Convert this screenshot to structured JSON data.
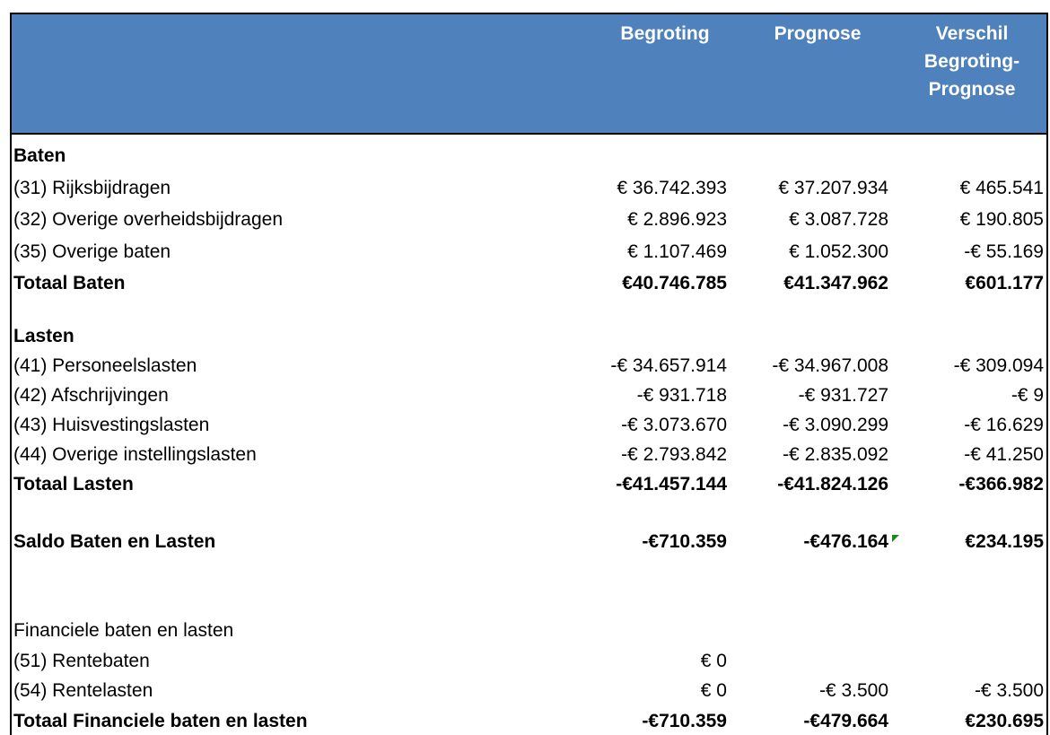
{
  "header": {
    "columns": [
      "Begroting",
      "Prognose",
      "Verschil Begroting-Prognose"
    ]
  },
  "sections": [
    {
      "rows": [
        {
          "label": "Baten",
          "bold": true,
          "values": [
            null,
            null,
            null
          ]
        },
        {
          "label": "(31) Rijksbijdragen",
          "bold": false,
          "values": [
            "€ 36.742.393",
            "€ 37.207.934",
            "€ 465.541"
          ]
        },
        {
          "label": "(32) Overige overheidsbijdragen",
          "bold": false,
          "values": [
            "€ 2.896.923",
            "€ 3.087.728",
            "€ 190.805"
          ]
        },
        {
          "label": "(35) Overige baten",
          "bold": false,
          "values": [
            "€ 1.107.469",
            "€ 1.052.300",
            "-€ 55.169"
          ]
        },
        {
          "label": "Totaal Baten",
          "bold": true,
          "values": [
            "€40.746.785",
            "€41.347.962",
            "€601.177"
          ]
        }
      ]
    },
    {
      "rows": [
        {
          "label": "Lasten",
          "bold": true,
          "values": [
            null,
            null,
            null
          ]
        },
        {
          "label": "(41) Personeelslasten",
          "bold": false,
          "values": [
            "-€ 34.657.914",
            "-€ 34.967.008",
            "-€ 309.094"
          ]
        },
        {
          "label": "(42) Afschrijvingen",
          "bold": false,
          "values": [
            "-€ 931.718",
            "-€ 931.727",
            "-€ 9"
          ]
        },
        {
          "label": "(43) Huisvestingslasten",
          "bold": false,
          "values": [
            "-€ 3.073.670",
            "-€ 3.090.299",
            "-€ 16.629"
          ]
        },
        {
          "label": "(44) Overige instellingslasten",
          "bold": false,
          "values": [
            "-€ 2.793.842",
            "-€ 2.835.092",
            "-€ 41.250"
          ]
        },
        {
          "label": "Totaal Lasten",
          "bold": true,
          "values": [
            "-€41.457.144",
            "-€41.824.126",
            "-€366.982"
          ]
        }
      ]
    },
    {
      "rows": [
        {
          "label": "Saldo Baten en Lasten",
          "bold": true,
          "values": [
            "-€710.359",
            "-€476.164",
            "€234.195"
          ]
        }
      ]
    },
    {
      "rows": [
        {
          "label": "Financiele baten en lasten",
          "bold": false,
          "values": [
            null,
            null,
            null
          ]
        },
        {
          "label": "(51) Rentebaten",
          "bold": false,
          "values": [
            "€ 0",
            null,
            null
          ]
        },
        {
          "label": "(54) Rentelasten",
          "bold": false,
          "values": [
            "€ 0",
            "-€ 3.500",
            "-€ 3.500"
          ]
        },
        {
          "label": "Totaal Financiele baten en lasten",
          "bold": true,
          "values": [
            "-€710.359",
            "-€479.664",
            "€230.695"
          ]
        }
      ]
    }
  ]
}
